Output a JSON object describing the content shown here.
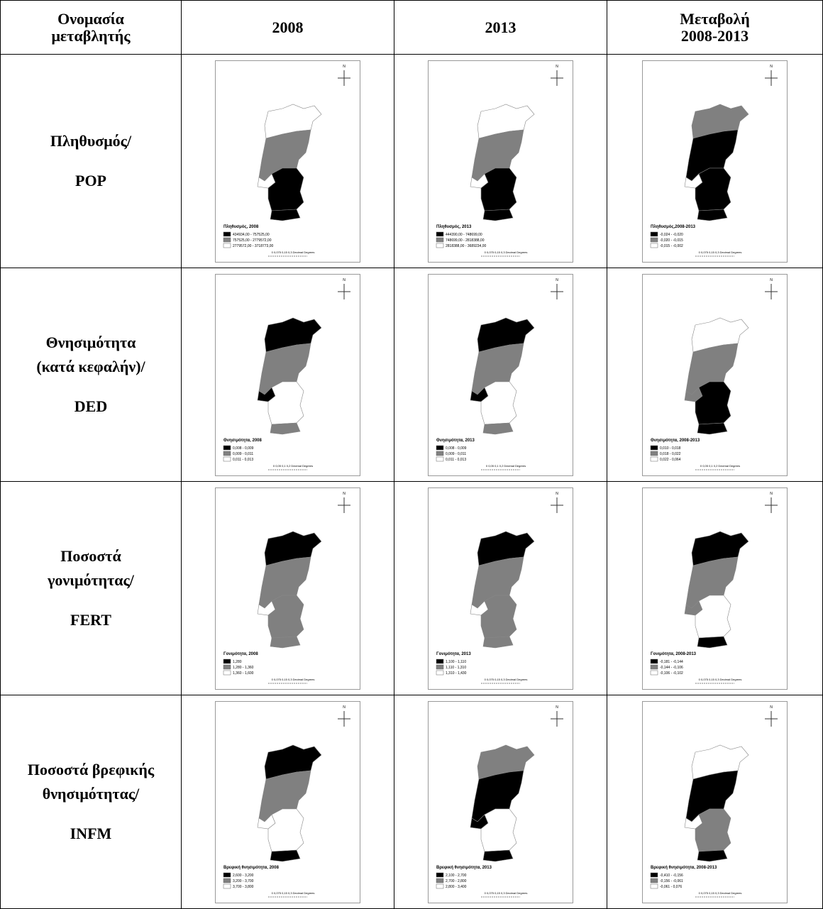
{
  "header": [
    [
      "Ονομασία",
      "μεταβλητής"
    ],
    [
      "2008"
    ],
    [
      "2013"
    ],
    [
      "Μεταβολή",
      "2008-2013"
    ]
  ],
  "rows": [
    {
      "label": [
        "Πληθυσμός/",
        "POP"
      ],
      "maps": [
        {
          "north": "N",
          "legend_title": "Πληθυσμός, 2008",
          "classes": [
            "434934,00 - 757525,00",
            "757525,00 - 2779572,00",
            "2779572,00 - 3718773,00"
          ],
          "fills": [
            "#ffffff",
            "#808080",
            "#ffffff",
            "#000000",
            "#000000"
          ],
          "scale": "0   0,075  0,15        0,3 Decimal Degrees"
        },
        {
          "north": "N",
          "legend_title": "Πληθυσμός, 2013",
          "classes": [
            "444390,00 - 748699,00",
            "748699,00 - 2818388,00",
            "2818388,00 - 3689234,00"
          ],
          "fills": [
            "#ffffff",
            "#808080",
            "#ffffff",
            "#000000",
            "#000000"
          ],
          "scale": "0   0,075  0,15        0,3 Decimal Degrees"
        },
        {
          "north": "N",
          "legend_title": "Πληθυσμός,2008-2013",
          "classes": [
            "-0,024 - -0,020",
            "-0,020 - -0,015",
            "-0,015 - -0,002"
          ],
          "fills": [
            "#808080",
            "#000000",
            "#ffffff",
            "#000000",
            "#000000"
          ],
          "scale": "0   0,075  0,15        0,3 Decimal Degrees"
        }
      ]
    },
    {
      "label": [
        "Θνησιμότητα",
        "(κατά κεφαλήν)/",
        "DED"
      ],
      "maps": [
        {
          "north": "N",
          "legend_title": "Θνησιμότητα, 2008",
          "classes": [
            "0,008 - 0,009",
            "0,009 - 0,011",
            "0,011 - 0,013"
          ],
          "fills": [
            "#000000",
            "#808080",
            "#000000",
            "#ffffff",
            "#808080"
          ],
          "scale": "0   0,05  0,1        0,2 Decimal Degrees"
        },
        {
          "north": "N",
          "legend_title": "Θνησιμότητα, 2013",
          "classes": [
            "0,008 - 0,009",
            "0,009 - 0,011",
            "0,011 - 0,013"
          ],
          "fills": [
            "#000000",
            "#808080",
            "#000000",
            "#ffffff",
            "#808080"
          ],
          "scale": "0   0,05  0,1        0,2 Decimal Degrees"
        },
        {
          "north": "N",
          "legend_title": "Θνησιμότητα, 2008-2013",
          "classes": [
            "0,010 - 0,018",
            "0,018 - 0,022",
            "0,022 - 0,064"
          ],
          "fills": [
            "#ffffff",
            "#808080",
            "#808080",
            "#000000",
            "#000000"
          ],
          "scale": "0   0,05  0,1        0,2 Decimal Degrees"
        }
      ]
    },
    {
      "label": [
        "Ποσοστά",
        "γονιμότητας/",
        "FERT"
      ],
      "maps": [
        {
          "north": "N",
          "legend_title": "Γονιμότητα, 2008",
          "classes": [
            "1,280",
            "1,280 - 1,360",
            "1,360 - 1,600"
          ],
          "fills": [
            "#000000",
            "#808080",
            "#ffffff",
            "#808080",
            "#808080"
          ],
          "scale": "0   0,075  0,15        0,3 Decimal Degrees"
        },
        {
          "north": "N",
          "legend_title": "Γονιμότητα, 2013",
          "classes": [
            "1,100 - 1,110",
            "1,110 - 1,310",
            "1,310 - 1,430"
          ],
          "fills": [
            "#000000",
            "#808080",
            "#ffffff",
            "#808080",
            "#808080"
          ],
          "scale": "0   0,075  0,15        0,3 Decimal Degrees"
        },
        {
          "north": "N",
          "legend_title": "Γονιμότητα, 2008-2013",
          "classes": [
            "-0,181 - -0,144",
            "-0,144 - -0,106",
            "-0,106 - -0,102"
          ],
          "fills": [
            "#000000",
            "#808080",
            "#808080",
            "#ffffff",
            "#000000"
          ],
          "scale": "0   0,075  0,15        0,3 Decimal Degrees"
        }
      ]
    },
    {
      "label": [
        "Ποσοστά βρεφικής",
        "θνησιμότητας/",
        "INFM"
      ],
      "maps": [
        {
          "north": "N",
          "legend_title": "Βρεφική θνησιμότητα, 2008",
          "classes": [
            "2,600 - 3,200",
            "3,200 - 3,700",
            "3,700 - 3,800"
          ],
          "fills": [
            "#000000",
            "#808080",
            "#ffffff",
            "#ffffff",
            "#000000"
          ],
          "scale": "0   0,075  0,15        0,3 Decimal Degrees"
        },
        {
          "north": "N",
          "legend_title": "Βρεφική θνησιμότητα, 2013",
          "classes": [
            "2,100 - 2,700",
            "2,700 - 2,800",
            "2,800 - 3,400"
          ],
          "fills": [
            "#808080",
            "#000000",
            "#000000",
            "#ffffff",
            "#000000"
          ],
          "scale": "0   0,075  0,15        0,3 Decimal Degrees"
        },
        {
          "north": "N",
          "legend_title": "Βρεφική θνησιμότητα, 2008-2013",
          "classes": [
            "-0,410 - -0,156",
            "-0,156 - -0,061",
            "-0,061 - 0,076"
          ],
          "fills": [
            "#ffffff",
            "#000000",
            "#ffffff",
            "#808080",
            "#000000"
          ],
          "scale": "0   0,075  0,15        0,3 Decimal Degrees"
        }
      ]
    }
  ]
}
